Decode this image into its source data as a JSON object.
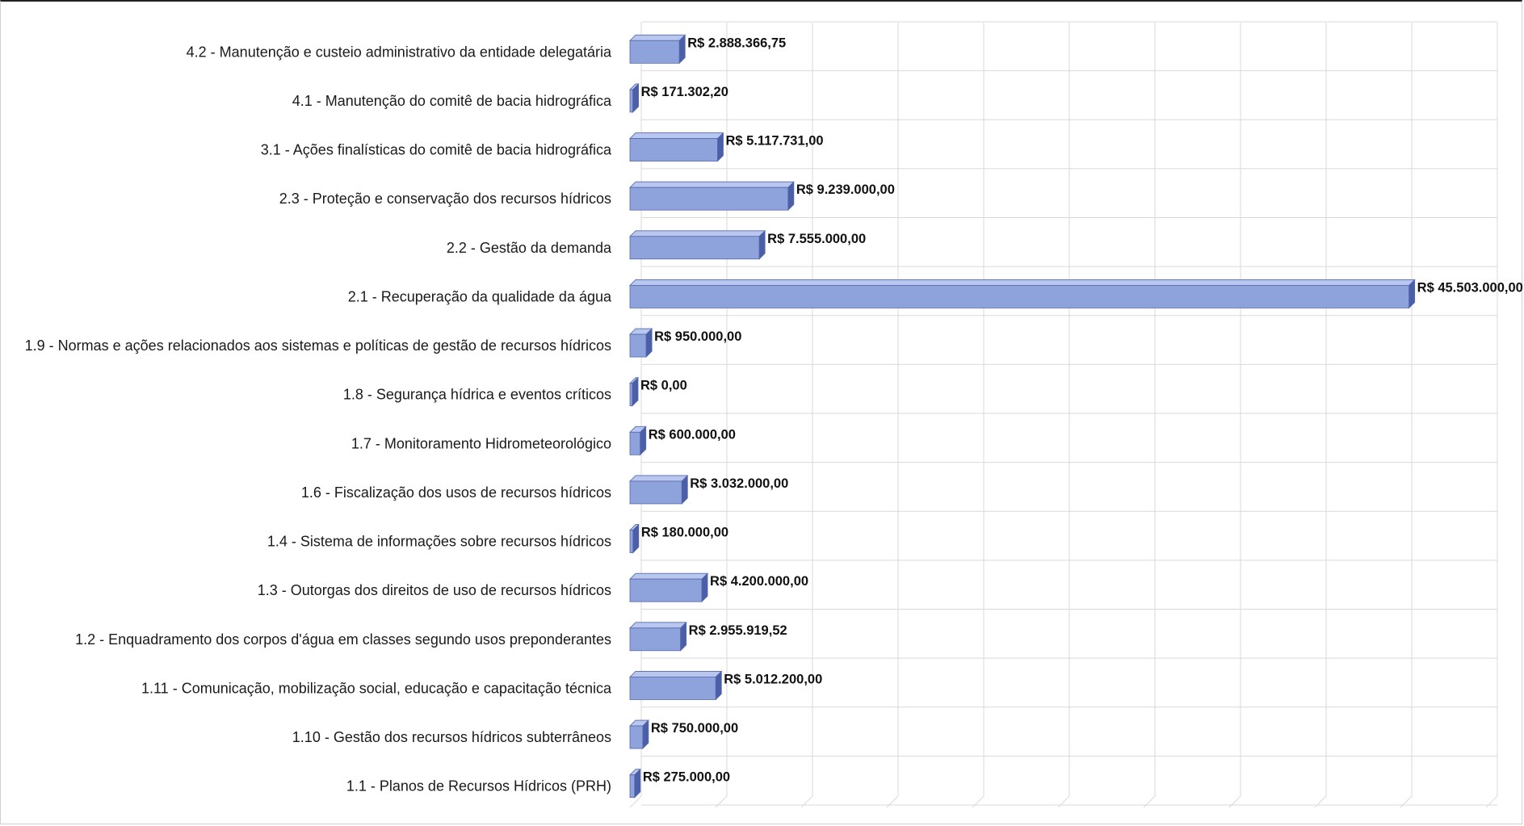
{
  "chart_data": {
    "type": "bar",
    "orientation": "horizontal",
    "style": "3d-cylinder-bars",
    "title": "",
    "xlabel": "",
    "ylabel": "",
    "categories": [
      "4.2 - Manutenção e custeio administrativo da entidade delegatária",
      "4.1 - Manutenção do comitê de bacia hidrográfica",
      "3.1 - Ações finalísticas do comitê de bacia hidrográfica",
      "2.3 - Proteção e conservação dos recursos hídricos",
      "2.2 - Gestão da demanda",
      "2.1 - Recuperação da qualidade da água",
      "1.9 - Normas e ações relacionados aos sistemas e políticas de gestão de recursos hídricos",
      "1.8 - Segurança hídrica e eventos críticos",
      "1.7 - Monitoramento Hidrometeorológico",
      "1.6 - Fiscalização dos usos de recursos hídricos",
      "1.4 - Sistema de informações sobre recursos hídricos",
      "1.3 - Outorgas dos direitos de uso de recursos hídricos",
      "1.2 - Enquadramento dos corpos d'água em classes segundo usos preponderantes",
      "1.11 - Comunicação, mobilização social, educação e capacitação técnica",
      "1.10 - Gestão dos recursos hídricos subterrâneos",
      "1.1 - Planos de Recursos Hídricos (PRH)"
    ],
    "values": [
      2888366.75,
      171302.2,
      5117731.0,
      9239000.0,
      7555000.0,
      45503000.0,
      950000.0,
      0.0,
      600000.0,
      3032000.0,
      180000.0,
      4200000.0,
      2955919.52,
      5012200.0,
      750000.0,
      275000.0
    ],
    "data_labels": [
      "R$ 2.888.366,75",
      "R$ 171.302,20",
      "R$ 5.117.731,00",
      "R$ 9.239.000,00",
      "R$ 7.555.000,00",
      "R$ 45.503.000,00",
      "R$ 950.000,00",
      "R$ 0,00",
      "R$ 600.000,00",
      "R$ 3.032.000,00",
      "R$ 180.000,00",
      "R$ 4.200.000,00",
      "R$ 2.955.919,52",
      "R$ 5.012.200,00",
      "R$ 750.000,00",
      "R$ 275.000,00"
    ],
    "xlim": [
      0,
      50000000
    ],
    "x_gridline_step": 5000000,
    "grid": true,
    "legend": "none",
    "colors": {
      "bar_front": "#8ea3dc",
      "bar_top": "#b9c7ee",
      "bar_end": "#4a5fa8",
      "bar_edge": "#5568ad",
      "grid": "#d9d9d9"
    }
  }
}
